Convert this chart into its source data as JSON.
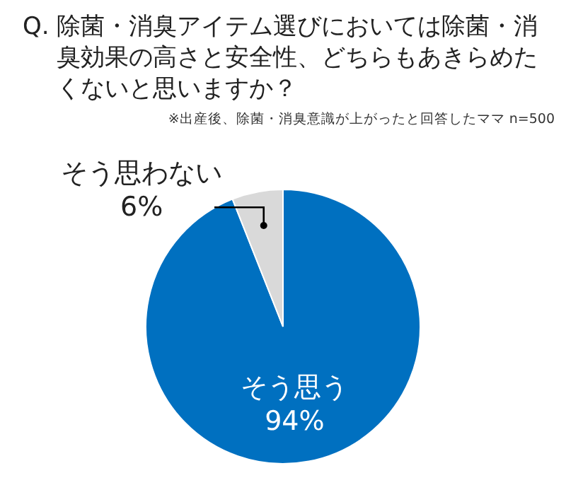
{
  "chart_data": {
    "type": "pie",
    "title": "Q. 除菌・消臭アイテム選びにおいては除菌・消臭効果の高さと安全性、どちらもあきらめたくないと思いますか？",
    "subtitle": "※出産後、除菌・消臭意識が上がったと回答したママ n=500",
    "categories": [
      "そう思う",
      "そう思わない"
    ],
    "values": [
      94,
      6
    ],
    "colors": [
      "#0070c0",
      "#d9d9d9"
    ],
    "value_labels": [
      "94%",
      "6%"
    ]
  }
}
